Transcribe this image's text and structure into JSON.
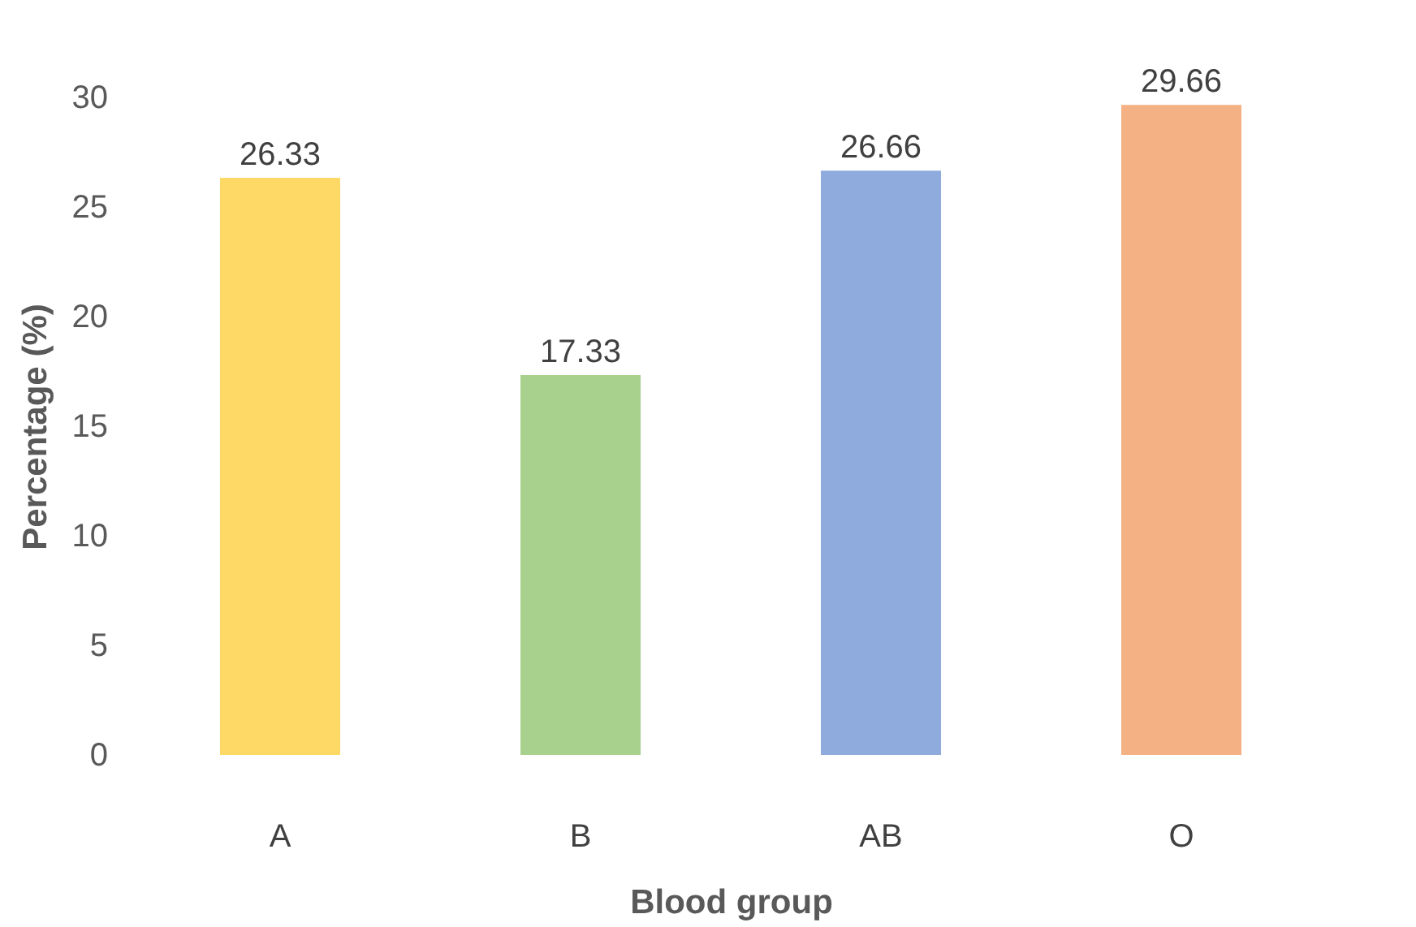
{
  "chart_data": {
    "type": "bar",
    "xlabel": "Blood group",
    "ylabel": "Percentage (%)",
    "categories": [
      "A",
      "B",
      "AB",
      "O"
    ],
    "values": [
      26.33,
      17.33,
      26.66,
      29.66
    ],
    "colors": [
      "#ffd966",
      "#a9d18e",
      "#8faadc",
      "#f4b183"
    ],
    "ylim": [
      0,
      30
    ],
    "yticks": [
      0,
      5,
      10,
      15,
      20,
      25,
      30
    ],
    "grid": false,
    "legend": false,
    "data_labels": true
  }
}
